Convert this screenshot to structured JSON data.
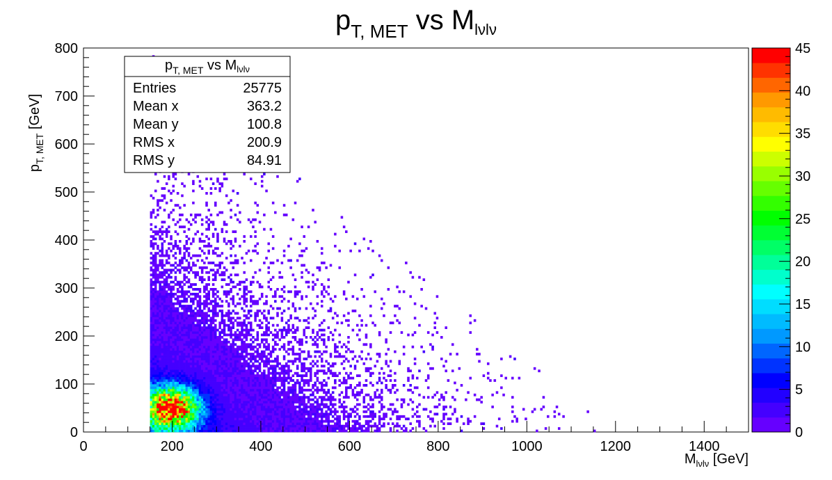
{
  "chart_data": {
    "type": "heatmap",
    "title": {
      "main": "p",
      "sub": "T, MET",
      "mid": " vs M",
      "sub2": "lνlν"
    },
    "xlabel": {
      "main": "M",
      "sub": "lνlν",
      "unit": " [GeV]"
    },
    "ylabel": {
      "main": "p",
      "sub": "T, MET",
      "unit": " [GeV]"
    },
    "xlim": [
      0,
      1500
    ],
    "ylim": [
      0,
      800
    ],
    "zlim": [
      0,
      45
    ],
    "x_ticks": [
      "0",
      "200",
      "400",
      "600",
      "800",
      "1000",
      "1200",
      "1400"
    ],
    "y_ticks": [
      "0",
      "100",
      "200",
      "300",
      "400",
      "500",
      "600",
      "700",
      "800"
    ],
    "z_ticks": [
      "0",
      "5",
      "10",
      "15",
      "20",
      "25",
      "30",
      "35",
      "40",
      "45"
    ],
    "bins": {
      "x_width": 5,
      "y_width": 5
    },
    "colorscale": [
      "#6600ff",
      "#4400ff",
      "#2200ff",
      "#0000ff",
      "#0033ff",
      "#0066ff",
      "#0099ff",
      "#00bbff",
      "#00ddff",
      "#00ffff",
      "#00ffcc",
      "#00ff99",
      "#00ff66",
      "#00ff33",
      "#00ff00",
      "#33ff00",
      "#66ff00",
      "#99ff00",
      "#ccff00",
      "#ffff00",
      "#ffdd00",
      "#ffbb00",
      "#ff9900",
      "#ff6600",
      "#ff3300",
      "#ff0000"
    ],
    "peak": {
      "x": 200,
      "y": 50,
      "value": 45
    },
    "stats": {
      "title": {
        "main": "p",
        "sub": "T, MET",
        "mid": " vs M",
        "sub2": "lνlν"
      },
      "rows": [
        {
          "label": "Entries",
          "value": "25775"
        },
        {
          "label": "Mean x",
          "value": "363.2"
        },
        {
          "label": "Mean y",
          "value": "100.8"
        },
        {
          "label": "RMS x",
          "value": "200.9"
        },
        {
          "label": "RMS y",
          "value": "84.91"
        }
      ],
      "placement": "top-left"
    }
  }
}
